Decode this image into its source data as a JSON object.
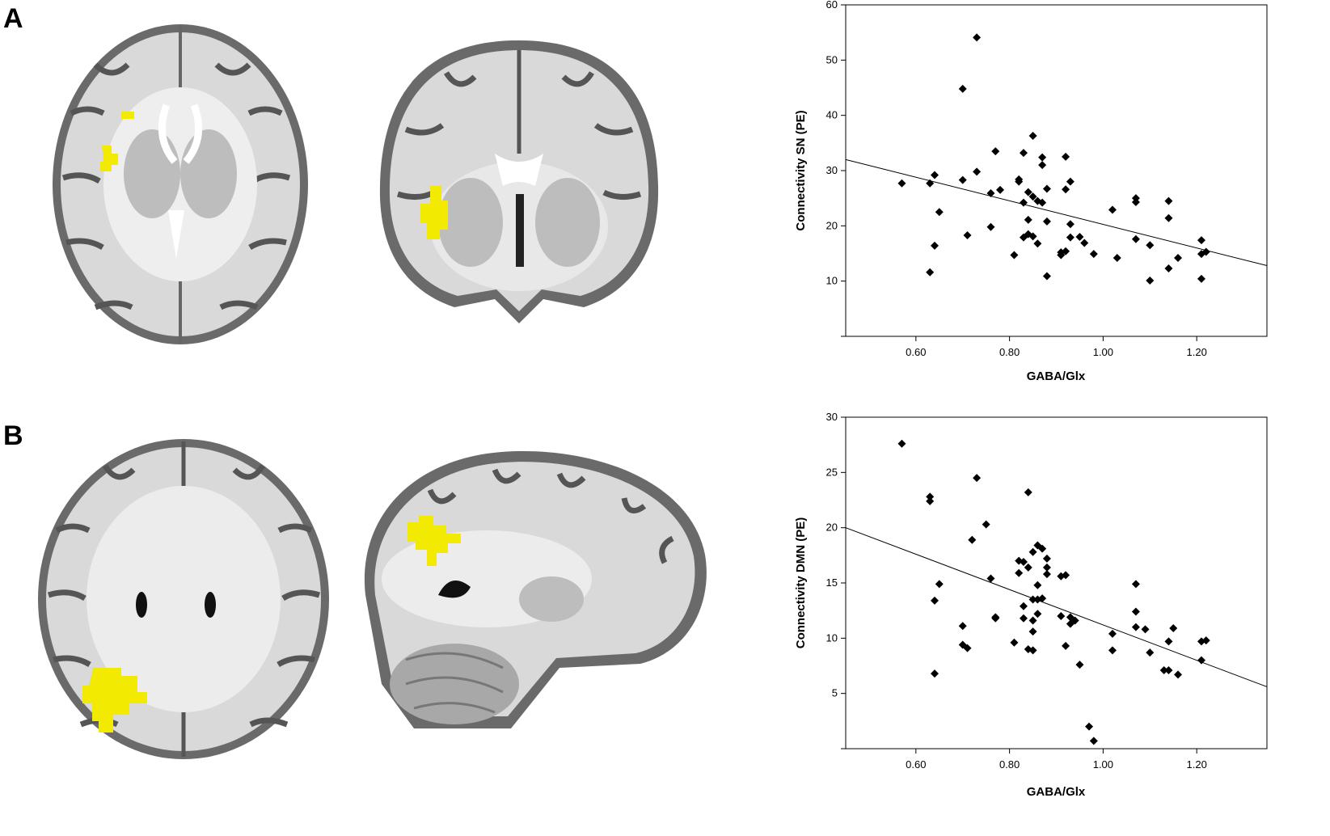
{
  "panels": [
    {
      "label": "A"
    },
    {
      "label": "B"
    }
  ],
  "colors": {
    "highlight": "#f2ea00",
    "point": "#000000",
    "line": "#000000"
  },
  "chart_data": [
    {
      "type": "scatter",
      "title": "",
      "xlabel": "GABA/Glx",
      "ylabel": "Connectivity SN (PE)",
      "xlim": [
        0.45,
        1.35
      ],
      "ylim": [
        0,
        60
      ],
      "xticks": [
        "0.60",
        "0.80",
        "1.00",
        "1.20"
      ],
      "yticks": [
        "10",
        "20",
        "30",
        "40",
        "50",
        "60"
      ],
      "grid": false,
      "fit_line": {
        "x": [
          0.45,
          1.35
        ],
        "y": [
          32.0,
          12.8
        ]
      },
      "points": [
        [
          0.57,
          27.7
        ],
        [
          0.63,
          27.7
        ],
        [
          0.63,
          11.6
        ],
        [
          0.64,
          29.2
        ],
        [
          0.64,
          16.4
        ],
        [
          0.65,
          22.5
        ],
        [
          0.7,
          44.8
        ],
        [
          0.7,
          28.3
        ],
        [
          0.71,
          18.3
        ],
        [
          0.73,
          54.1
        ],
        [
          0.73,
          29.8
        ],
        [
          0.76,
          25.9
        ],
        [
          0.76,
          19.8
        ],
        [
          0.77,
          33.5
        ],
        [
          0.78,
          26.5
        ],
        [
          0.81,
          14.7
        ],
        [
          0.82,
          28.4
        ],
        [
          0.82,
          28.0
        ],
        [
          0.83,
          33.2
        ],
        [
          0.83,
          24.2
        ],
        [
          0.83,
          17.9
        ],
        [
          0.84,
          26.1
        ],
        [
          0.84,
          21.1
        ],
        [
          0.84,
          18.5
        ],
        [
          0.85,
          36.3
        ],
        [
          0.85,
          25.3
        ],
        [
          0.85,
          18.1
        ],
        [
          0.86,
          24.5
        ],
        [
          0.86,
          16.8
        ],
        [
          0.87,
          32.4
        ],
        [
          0.87,
          31.0
        ],
        [
          0.87,
          24.2
        ],
        [
          0.88,
          26.7
        ],
        [
          0.88,
          20.8
        ],
        [
          0.88,
          10.9
        ],
        [
          0.91,
          14.7
        ],
        [
          0.91,
          15.2
        ],
        [
          0.92,
          32.5
        ],
        [
          0.92,
          26.6
        ],
        [
          0.92,
          15.4
        ],
        [
          0.93,
          20.3
        ],
        [
          0.93,
          28.0
        ],
        [
          0.93,
          17.9
        ],
        [
          0.95,
          18.0
        ],
        [
          0.96,
          16.9
        ],
        [
          0.98,
          14.9
        ],
        [
          1.02,
          22.9
        ],
        [
          1.03,
          14.2
        ],
        [
          1.07,
          25.0
        ],
        [
          1.07,
          24.3
        ],
        [
          1.07,
          17.6
        ],
        [
          1.1,
          16.5
        ],
        [
          1.1,
          10.1
        ],
        [
          1.14,
          24.5
        ],
        [
          1.14,
          21.4
        ],
        [
          1.14,
          12.3
        ],
        [
          1.16,
          14.2
        ],
        [
          1.21,
          17.4
        ],
        [
          1.21,
          10.4
        ],
        [
          1.21,
          14.9
        ],
        [
          1.22,
          15.3
        ]
      ]
    },
    {
      "type": "scatter",
      "title": "",
      "xlabel": "GABA/Glx",
      "ylabel": "Connectivity DMN (PE)",
      "xlim": [
        0.45,
        1.35
      ],
      "ylim": [
        0,
        30
      ],
      "xticks": [
        "0.60",
        "0.80",
        "1.00",
        "1.20"
      ],
      "yticks": [
        "5",
        "10",
        "15",
        "20",
        "25",
        "30"
      ],
      "grid": false,
      "fit_line": {
        "x": [
          0.45,
          1.35
        ],
        "y": [
          20.0,
          5.6
        ]
      },
      "points": [
        [
          0.57,
          27.6
        ],
        [
          0.63,
          22.8
        ],
        [
          0.63,
          22.4
        ],
        [
          0.64,
          13.4
        ],
        [
          0.64,
          6.8
        ],
        [
          0.65,
          14.9
        ],
        [
          0.7,
          11.1
        ],
        [
          0.7,
          9.4
        ],
        [
          0.71,
          9.1
        ],
        [
          0.72,
          18.9
        ],
        [
          0.73,
          24.5
        ],
        [
          0.75,
          20.3
        ],
        [
          0.76,
          15.4
        ],
        [
          0.77,
          11.9
        ],
        [
          0.77,
          11.8
        ],
        [
          0.81,
          9.6
        ],
        [
          0.82,
          17.0
        ],
        [
          0.82,
          15.9
        ],
        [
          0.83,
          16.9
        ],
        [
          0.83,
          11.8
        ],
        [
          0.83,
          12.9
        ],
        [
          0.84,
          23.2
        ],
        [
          0.84,
          16.4
        ],
        [
          0.84,
          9.0
        ],
        [
          0.85,
          17.8
        ],
        [
          0.85,
          13.5
        ],
        [
          0.85,
          11.6
        ],
        [
          0.85,
          10.6
        ],
        [
          0.85,
          8.9
        ],
        [
          0.86,
          18.4
        ],
        [
          0.86,
          14.8
        ],
        [
          0.86,
          13.5
        ],
        [
          0.86,
          12.2
        ],
        [
          0.87,
          18.1
        ],
        [
          0.87,
          13.6
        ],
        [
          0.88,
          16.4
        ],
        [
          0.88,
          17.2
        ],
        [
          0.88,
          15.8
        ],
        [
          0.91,
          15.6
        ],
        [
          0.91,
          12.0
        ],
        [
          0.92,
          15.7
        ],
        [
          0.92,
          9.3
        ],
        [
          0.93,
          11.9
        ],
        [
          0.93,
          11.3
        ],
        [
          0.94,
          11.6
        ],
        [
          0.95,
          7.6
        ],
        [
          0.97,
          2.0
        ],
        [
          0.98,
          0.7
        ],
        [
          1.02,
          10.4
        ],
        [
          1.02,
          8.9
        ],
        [
          1.07,
          14.9
        ],
        [
          1.07,
          12.4
        ],
        [
          1.07,
          11.0
        ],
        [
          1.09,
          10.8
        ],
        [
          1.1,
          8.7
        ],
        [
          1.13,
          7.1
        ],
        [
          1.14,
          7.1
        ],
        [
          1.14,
          9.7
        ],
        [
          1.15,
          10.9
        ],
        [
          1.16,
          6.7
        ],
        [
          1.21,
          8.0
        ],
        [
          1.21,
          9.7
        ],
        [
          1.22,
          9.8
        ]
      ]
    }
  ]
}
